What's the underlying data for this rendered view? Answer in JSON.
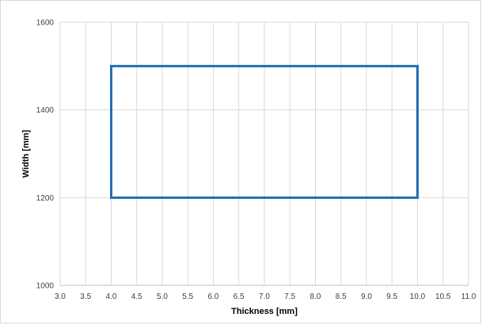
{
  "chart_data": {
    "type": "line",
    "title": "",
    "xlabel": "Thickness [mm]",
    "ylabel": "Width [mm]",
    "xlim": [
      3.0,
      11.0
    ],
    "ylim": [
      1000,
      1600
    ],
    "x_ticks": [
      "3.0",
      "3.5",
      "4.0",
      "4.5",
      "5.0",
      "5.5",
      "6.0",
      "6.5",
      "7.0",
      "7.5",
      "8.0",
      "8.5",
      "9.0",
      "9.5",
      "10.0",
      "10.5",
      "11.0"
    ],
    "y_ticks": [
      "1000",
      "1200",
      "1400",
      "1600"
    ],
    "grid": true,
    "series": [
      {
        "color": "#1f6fb4",
        "points": [
          [
            4.0,
            1200
          ],
          [
            4.0,
            1500
          ],
          [
            10.0,
            1500
          ],
          [
            10.0,
            1200
          ],
          [
            4.0,
            1200
          ]
        ]
      }
    ]
  }
}
